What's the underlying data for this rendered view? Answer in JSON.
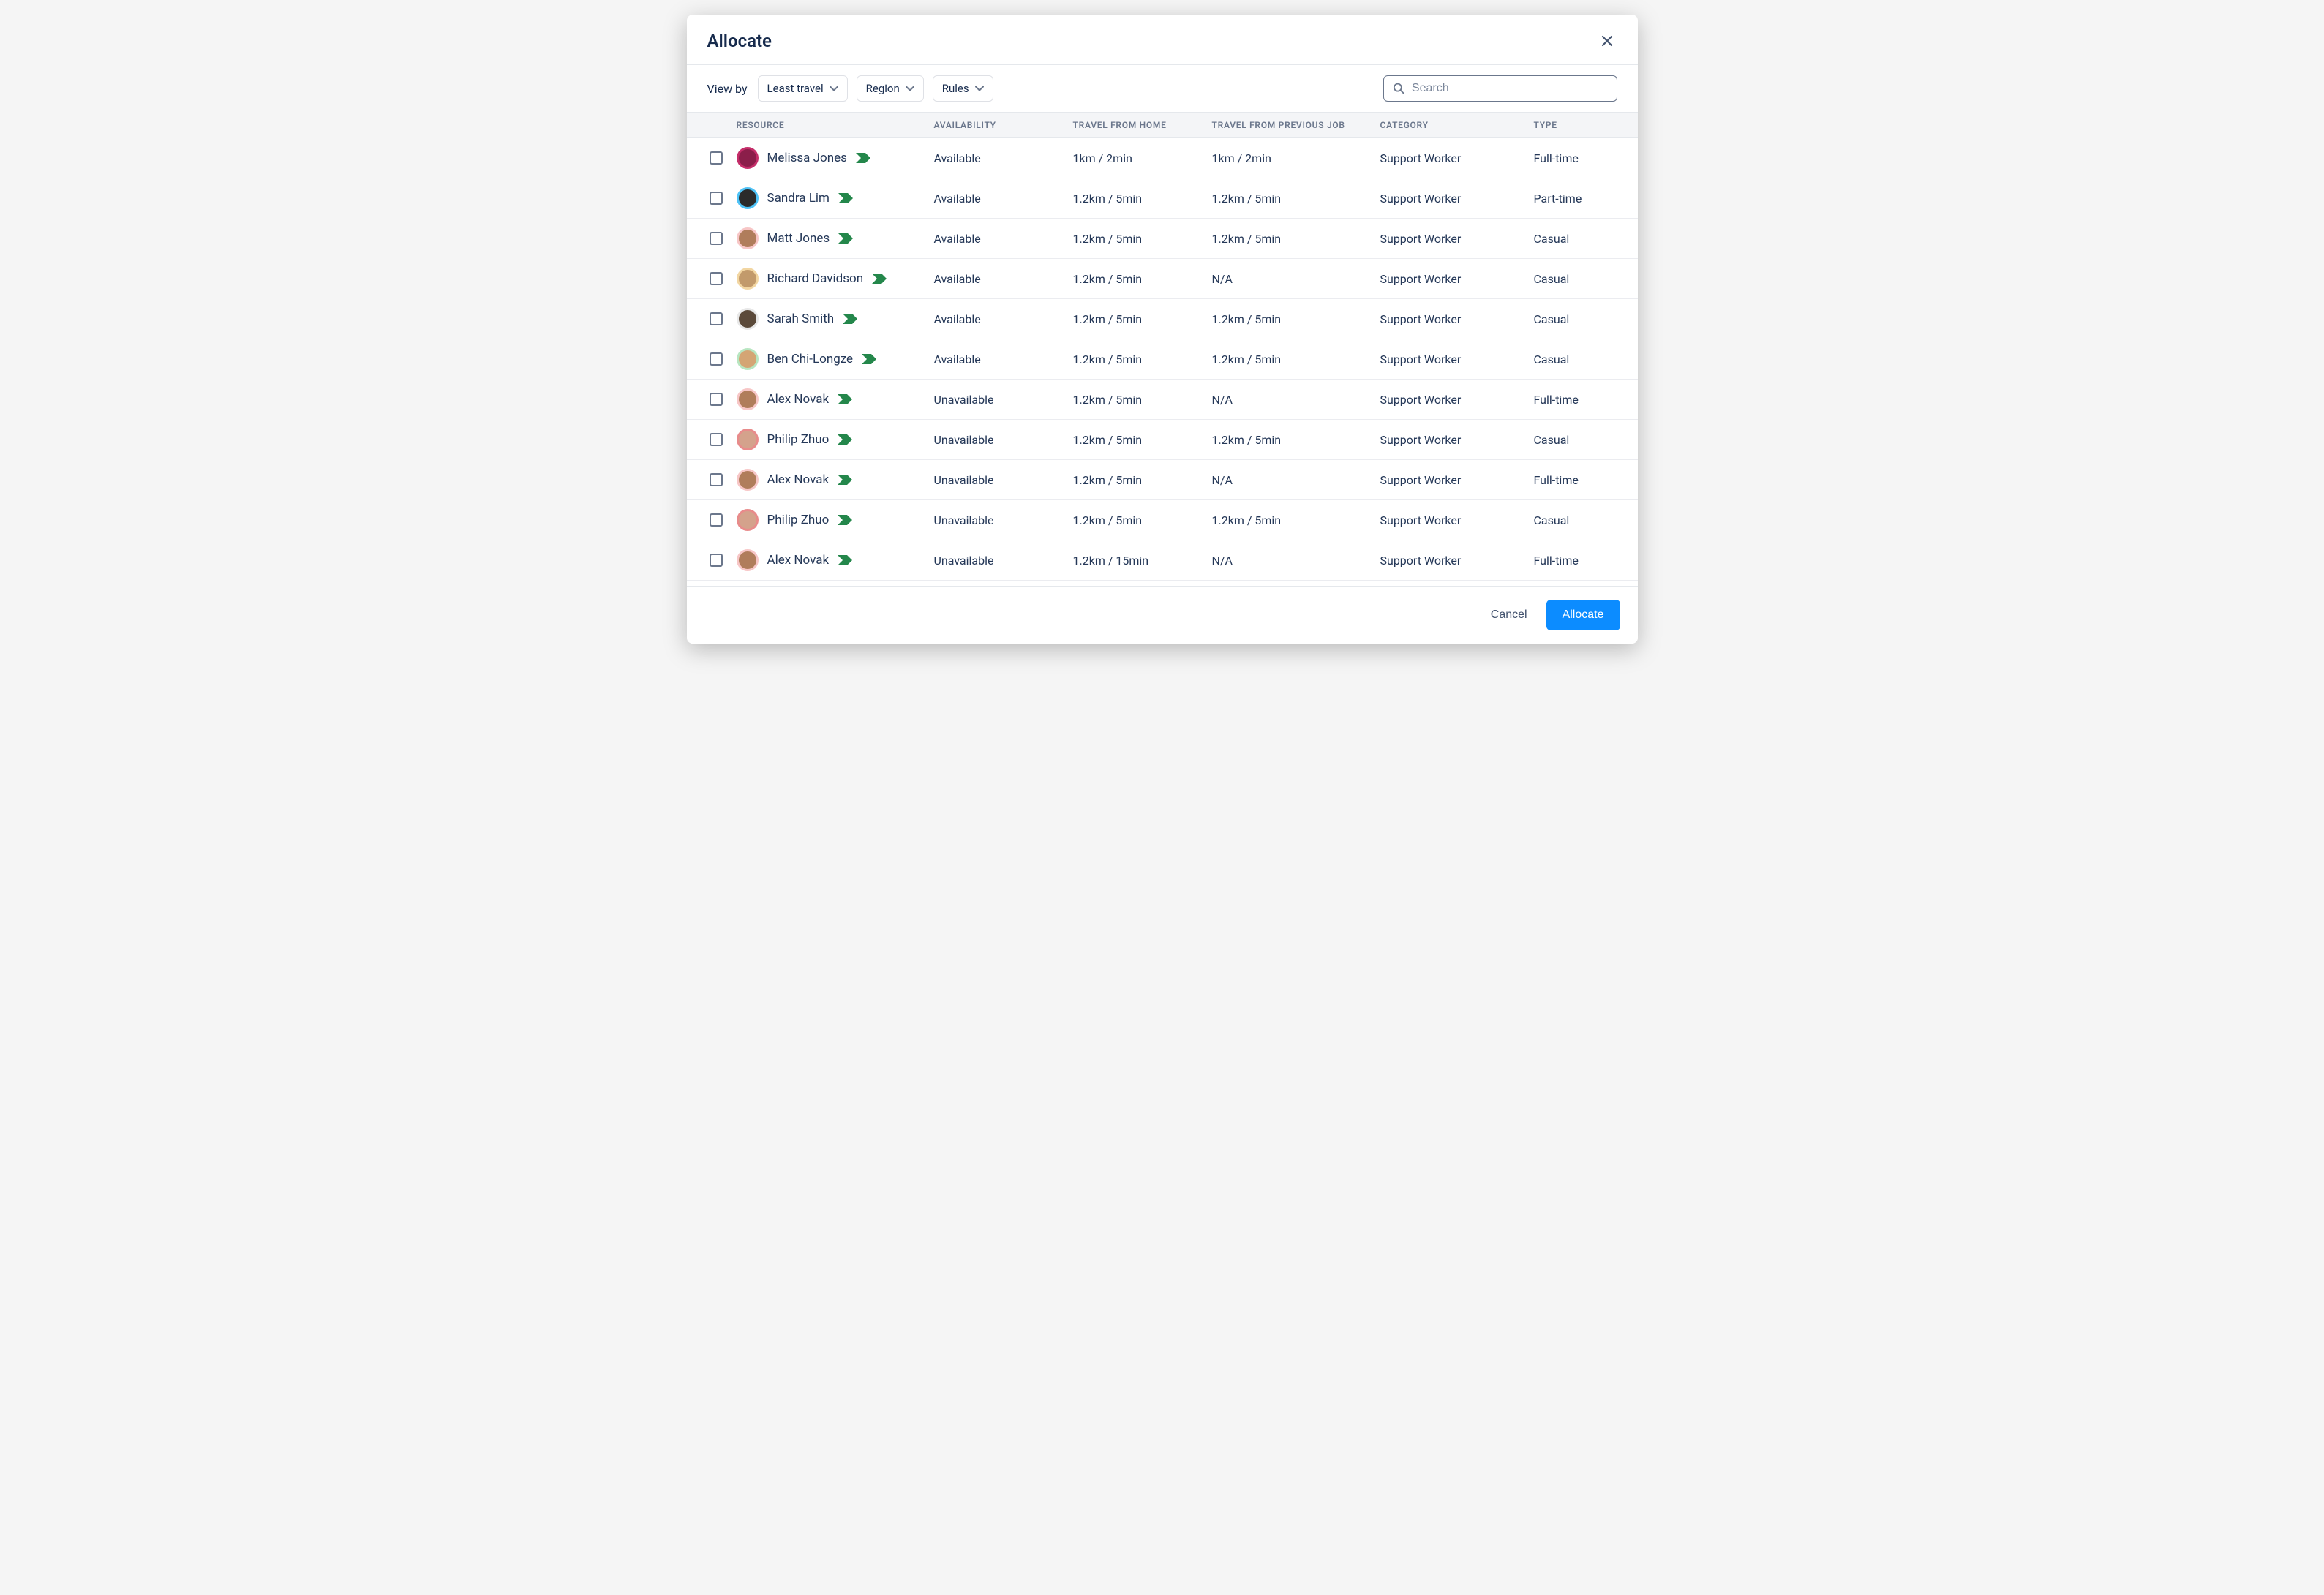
{
  "modal": {
    "title": "Allocate",
    "viewByLabel": "View by",
    "dropdowns": {
      "sort": "Least travel",
      "region": "Region",
      "rules": "Rules"
    },
    "search": {
      "placeholder": "Search"
    },
    "columns": {
      "resource": "RESOURCE",
      "availability": "AVAILABILITY",
      "travelHome": "TRAVEL FROM HOME",
      "travelPrev": "TRAVEL FROM PREVIOUS JOB",
      "category": "CATEGORY",
      "type": "TYPE"
    },
    "rows": [
      {
        "name": "Melissa Jones",
        "availability": "Available",
        "travelHome": "1km / 2min",
        "travelPrev": "1km / 2min",
        "category": "Support Worker",
        "type": "Full-time",
        "avatarBg": "#C52E6A",
        "avatarInner": "#8B1E4A"
      },
      {
        "name": "Sandra Lim",
        "availability": "Available",
        "travelHome": "1.2km / 5min",
        "travelPrev": "1.2km / 5min",
        "category": "Support Worker",
        "type": "Part-time",
        "avatarBg": "#4FC3F7",
        "avatarInner": "#2B2B2B"
      },
      {
        "name": "Matt Jones",
        "availability": "Available",
        "travelHome": "1.2km / 5min",
        "travelPrev": "1.2km / 5min",
        "category": "Support Worker",
        "type": "Casual",
        "avatarBg": "#F7C6C6",
        "avatarInner": "#B07D5B"
      },
      {
        "name": "Richard Davidson",
        "availability": "Available",
        "travelHome": "1.2km / 5min",
        "travelPrev": "N/A",
        "category": "Support Worker",
        "type": "Casual",
        "avatarBg": "#F2D6A2",
        "avatarInner": "#C29A6B"
      },
      {
        "name": "Sarah Smith",
        "availability": "Available",
        "travelHome": "1.2km / 5min",
        "travelPrev": "1.2km / 5min",
        "category": "Support Worker",
        "type": "Casual",
        "avatarBg": "#E8E8E8",
        "avatarInner": "#5B4A3A"
      },
      {
        "name": "Ben Chi-Longze",
        "availability": "Available",
        "travelHome": "1.2km / 5min",
        "travelPrev": "1.2km / 5min",
        "category": "Support Worker",
        "type": "Casual",
        "avatarBg": "#B8E6C1",
        "avatarInner": "#D4A574"
      },
      {
        "name": "Alex Novak",
        "availability": "Unavailable",
        "travelHome": "1.2km / 5min",
        "travelPrev": "N/A",
        "category": "Support Worker",
        "type": "Full-time",
        "avatarBg": "#F7C6C6",
        "avatarInner": "#B07D5B"
      },
      {
        "name": "Philip Zhuo",
        "availability": "Unavailable",
        "travelHome": "1.2km / 5min",
        "travelPrev": "1.2km / 5min",
        "category": "Support Worker",
        "type": "Casual",
        "avatarBg": "#E88B8B",
        "avatarInner": "#D4A28C"
      },
      {
        "name": "Alex Novak",
        "availability": "Unavailable",
        "travelHome": "1.2km / 5min",
        "travelPrev": "N/A",
        "category": "Support Worker",
        "type": "Full-time",
        "avatarBg": "#F7C6C6",
        "avatarInner": "#B07D5B"
      },
      {
        "name": "Philip Zhuo",
        "availability": "Unavailable",
        "travelHome": "1.2km / 5min",
        "travelPrev": "1.2km / 5min",
        "category": "Support Worker",
        "type": "Casual",
        "avatarBg": "#E88B8B",
        "avatarInner": "#D4A28C"
      },
      {
        "name": "Alex Novak",
        "availability": "Unavailable",
        "travelHome": "1.2km / 15min",
        "travelPrev": "N/A",
        "category": "Support Worker",
        "type": "Full-time",
        "avatarBg": "#F7C6C6",
        "avatarInner": "#B07D5B"
      }
    ],
    "footer": {
      "cancel": "Cancel",
      "allocate": "Allocate"
    }
  },
  "styles": {
    "tagColor": "#24874B",
    "primaryButton": "#0C8CFF",
    "headerBg": "#F4F5F7",
    "borderColor": "#E5E8EC",
    "textPrimary": "#172B4D",
    "textBody": "#253858",
    "textMuted": "#6B778C"
  }
}
